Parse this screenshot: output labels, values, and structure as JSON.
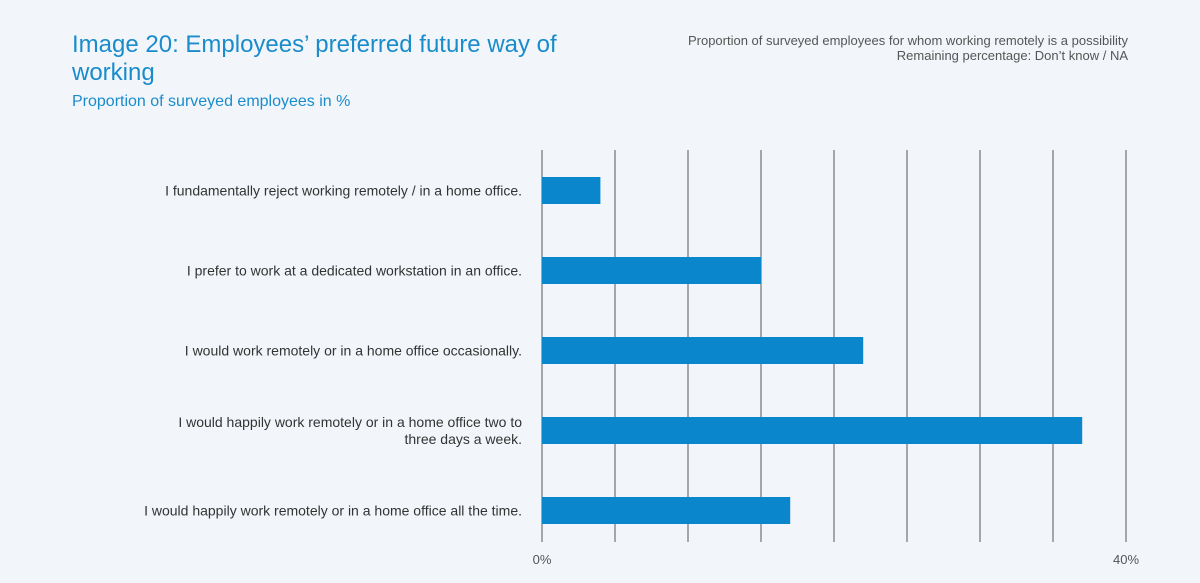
{
  "header": {
    "title": "Image 20: Employees’ preferred future way of working",
    "subtitle": "Proportion of surveyed employees in %",
    "note_line1": "Proportion of surveyed employees for whom working remotely is a possibility",
    "note_line2": "Remaining percentage: Don’t know / NA"
  },
  "colors": {
    "bar": "#0a86cc",
    "title": "#1a8ccc",
    "grid": "#555555",
    "background": "#f2f6fa"
  },
  "chart_data": {
    "type": "bar",
    "orientation": "horizontal",
    "title": "Image 20: Employees’ preferred future way of working",
    "subtitle": "Proportion of surveyed employees in %",
    "categories": [
      [
        "I fundamentally reject working remotely / in a home office."
      ],
      [
        "I prefer to work at a dedicated workstation in an office."
      ],
      [
        "I would work remotely or in a home office occasionally."
      ],
      [
        "I would happily work remotely or in a home office two to",
        "three days a week."
      ],
      [
        "I would happily work remotely or in a home office all the time."
      ]
    ],
    "values": [
      4,
      15,
      22,
      37,
      17
    ],
    "xlim": [
      0,
      40
    ],
    "gridlines": [
      0,
      5,
      10,
      15,
      20,
      25,
      30,
      35,
      40
    ],
    "tick_labels": [
      {
        "value": 0,
        "label": "0%"
      },
      {
        "value": 40,
        "label": "40%"
      }
    ],
    "grid": true,
    "legend": false
  }
}
